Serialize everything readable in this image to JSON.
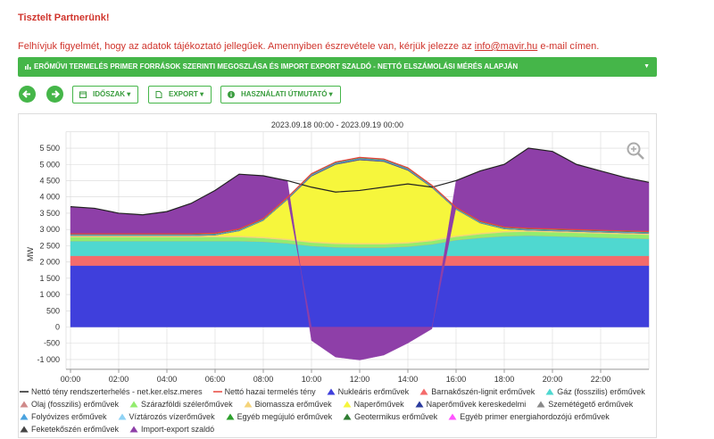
{
  "header": {
    "greeting": "Tisztelt Partnerünk!",
    "notice_before": "Felhívjuk figyelmét, hogy az adatok tájékoztató jellegűek. Amennyiben észrevétele van, kérjük jelezze az ",
    "notice_link": "info@mavir.hu",
    "notice_after": " e-mail címen."
  },
  "panel_title": "ERŐMŰVI TERMELÉS PRIMER FORRÁSOK SZERINTI MEGOSZLÁSA ÉS IMPORT EXPORT SZALDÓ - NETTÓ ELSZÁMOLÁSI MÉRÉS ALAPJÁN",
  "buttons": [
    "IDŐSZAK",
    "EXPORT",
    "HASZNÁLATI ÚTMUTATÓ"
  ],
  "chart_data": {
    "type": "area",
    "subtitle": "2023.09.18 00:00 - 2023.09.19 00:00",
    "y_label": "MW",
    "x": [
      0,
      1,
      2,
      3,
      4,
      5,
      6,
      7,
      8,
      9,
      10,
      11,
      12,
      13,
      14,
      15,
      16,
      17,
      18,
      19,
      20,
      21,
      22,
      23,
      24
    ],
    "xlim": [
      0,
      24
    ],
    "xticks": [
      {
        "value": 0,
        "label": "00:00"
      },
      {
        "value": 2,
        "label": "02:00"
      },
      {
        "value": 4,
        "label": "04:00"
      },
      {
        "value": 6,
        "label": "06:00"
      },
      {
        "value": 8,
        "label": "08:00"
      },
      {
        "value": 10,
        "label": "10:00"
      },
      {
        "value": 12,
        "label": "12:00"
      },
      {
        "value": 14,
        "label": "14:00"
      },
      {
        "value": 16,
        "label": "16:00"
      },
      {
        "value": 18,
        "label": "18:00"
      },
      {
        "value": 20,
        "label": "20:00"
      },
      {
        "value": 22,
        "label": "22:00"
      }
    ],
    "ylim": [
      -1300,
      6000
    ],
    "yticks": [
      {
        "value": -1000,
        "label": "-1 000"
      },
      {
        "value": -500,
        "label": "-500"
      },
      0,
      500,
      {
        "value": 1000,
        "label": "1 000"
      },
      {
        "value": 1500,
        "label": "1 500"
      },
      {
        "value": 2000,
        "label": "2 000"
      },
      {
        "value": 2500,
        "label": "2 500"
      },
      {
        "value": 3000,
        "label": "3 000"
      },
      {
        "value": 3500,
        "label": "3 500"
      },
      {
        "value": 4000,
        "label": "4 000"
      },
      {
        "value": 4500,
        "label": "4 500"
      },
      {
        "value": 5000,
        "label": "5 000"
      },
      {
        "value": 5500,
        "label": "5 500"
      }
    ],
    "grid": true,
    "series": [
      {
        "name": "Nettó tény rendszerterhelés - net.ker.elsz.meres",
        "type": "line",
        "color": "#222222",
        "values": [
          3700,
          3650,
          3500,
          3450,
          3550,
          3800,
          4200,
          4700,
          4650,
          4500,
          4300,
          4150,
          4200,
          4300,
          4400,
          4300,
          4500,
          4800,
          5000,
          5500,
          5400,
          5000,
          4800,
          4600,
          4450
        ]
      },
      {
        "name": "Nettó hazai termelés tény",
        "type": "line",
        "color": "#e8453c",
        "values": [
          2865,
          2865,
          2865,
          2865,
          2865,
          2865,
          2885,
          3015,
          3335,
          3985,
          4715,
          5075,
          5215,
          5165,
          4895,
          4355,
          3675,
          3255,
          3075,
          3035,
          3015,
          2995,
          2975,
          2955,
          2935
        ]
      },
      {
        "name": "Nukleáris erőművek",
        "type": "area",
        "color": "#3f3fdc",
        "values": [
          1890,
          1890,
          1890,
          1890,
          1890,
          1890,
          1890,
          1890,
          1890,
          1890,
          1890,
          1890,
          1890,
          1890,
          1890,
          1890,
          1890,
          1890,
          1890,
          1890,
          1890,
          1890,
          1890,
          1890,
          1890
        ]
      },
      {
        "name": "Barnakőszén-lignit erőművek",
        "type": "area",
        "color": "#f46b6b",
        "values": [
          300,
          300,
          300,
          300,
          300,
          300,
          300,
          300,
          300,
          300,
          300,
          300,
          300,
          300,
          300,
          300,
          300,
          300,
          300,
          300,
          300,
          300,
          300,
          300,
          300
        ]
      },
      {
        "name": "Gáz (fosszilis) erőművek",
        "type": "area",
        "color": "#4fd8d0",
        "values": [
          450,
          450,
          450,
          450,
          450,
          450,
          450,
          450,
          430,
          380,
          300,
          260,
          250,
          250,
          280,
          350,
          480,
          550,
          600,
          620,
          600,
          580,
          560,
          540,
          520
        ]
      },
      {
        "name": "Olaj (fosszilis) erőművek",
        "type": "area",
        "color": "#d08a8a",
        "values": [
          5,
          5,
          5,
          5,
          5,
          5,
          5,
          5,
          5,
          5,
          5,
          5,
          5,
          5,
          5,
          5,
          5,
          5,
          5,
          5,
          5,
          5,
          5,
          5,
          5
        ]
      },
      {
        "name": "Szárazföldi szélerőművek",
        "type": "area",
        "color": "#93ec6e",
        "values": [
          120,
          120,
          120,
          120,
          120,
          120,
          120,
          120,
          110,
          100,
          100,
          100,
          100,
          100,
          100,
          100,
          100,
          110,
          120,
          120,
          120,
          120,
          120,
          120,
          120
        ]
      },
      {
        "name": "Biomassza erőművek",
        "type": "area",
        "color": "#f5d47a",
        "values": [
          40,
          40,
          40,
          40,
          40,
          40,
          40,
          40,
          40,
          40,
          40,
          40,
          40,
          40,
          40,
          40,
          40,
          40,
          40,
          40,
          40,
          40,
          40,
          40,
          40
        ]
      },
      {
        "name": "Naperőművek",
        "type": "area",
        "color": "#f6f63c",
        "values": [
          0,
          0,
          0,
          0,
          0,
          0,
          20,
          150,
          500,
          1200,
          2000,
          2400,
          2550,
          2500,
          2200,
          1600,
          800,
          300,
          60,
          0,
          0,
          0,
          0,
          0,
          0
        ]
      },
      {
        "name": "Naperőművek kereskedelmi",
        "type": "area",
        "color": "#2b3b9e",
        "values": [
          0,
          0,
          0,
          0,
          0,
          0,
          0,
          0,
          0,
          10,
          20,
          20,
          20,
          20,
          20,
          10,
          0,
          0,
          0,
          0,
          0,
          0,
          0,
          0,
          0
        ]
      },
      {
        "name": "Szemétégető erőművek",
        "type": "area",
        "color": "#8a8a8a",
        "values": [
          15,
          15,
          15,
          15,
          15,
          15,
          15,
          15,
          15,
          15,
          15,
          15,
          15,
          15,
          15,
          15,
          15,
          15,
          15,
          15,
          15,
          15,
          15,
          15,
          15
        ]
      },
      {
        "name": "Folyóvizes erőművek",
        "type": "area",
        "color": "#4aa3df",
        "values": [
          20,
          20,
          20,
          20,
          20,
          20,
          20,
          20,
          20,
          20,
          20,
          20,
          20,
          20,
          20,
          20,
          20,
          20,
          20,
          20,
          20,
          20,
          20,
          20,
          20
        ]
      },
      {
        "name": "Víztározós vízerőművek",
        "type": "area",
        "color": "#8fd3f5",
        "values": [
          0,
          0,
          0,
          0,
          0,
          0,
          0,
          0,
          0,
          0,
          0,
          0,
          0,
          0,
          0,
          0,
          0,
          0,
          0,
          0,
          0,
          0,
          0,
          0,
          0
        ]
      },
      {
        "name": "Egyéb megújuló erőművek",
        "type": "area",
        "color": "#2ca02c",
        "values": [
          10,
          10,
          10,
          10,
          10,
          10,
          10,
          10,
          10,
          10,
          10,
          10,
          10,
          10,
          10,
          10,
          10,
          10,
          10,
          10,
          10,
          10,
          10,
          10,
          10
        ]
      },
      {
        "name": "Geotermikus erőművek",
        "type": "area",
        "color": "#2e7d32",
        "values": [
          5,
          5,
          5,
          5,
          5,
          5,
          5,
          5,
          5,
          5,
          5,
          5,
          5,
          5,
          5,
          5,
          5,
          5,
          5,
          5,
          5,
          5,
          5,
          5,
          5
        ]
      },
      {
        "name": "Egyéb primer energiahordozójú erőművek",
        "type": "area",
        "color": "#ff55ff",
        "values": [
          10,
          10,
          10,
          10,
          10,
          10,
          10,
          10,
          10,
          10,
          10,
          10,
          10,
          10,
          10,
          10,
          10,
          10,
          10,
          10,
          10,
          10,
          10,
          10,
          10
        ]
      },
      {
        "name": "Feketekőszén erőművek",
        "type": "area",
        "color": "#444444",
        "values": [
          0,
          0,
          0,
          0,
          0,
          0,
          0,
          0,
          0,
          0,
          0,
          0,
          0,
          0,
          0,
          0,
          0,
          0,
          0,
          0,
          0,
          0,
          0,
          0,
          0
        ]
      },
      {
        "name": "Import-export szaldó",
        "type": "area",
        "color": "#8e3fa8",
        "values": [
          835,
          785,
          635,
          585,
          685,
          935,
          1315,
          1685,
          1315,
          515,
          -415,
          -925,
          -1015,
          -865,
          -495,
          -55,
          825,
          1545,
          1925,
          2465,
          2385,
          2005,
          1825,
          1645,
          1515
        ]
      }
    ]
  }
}
